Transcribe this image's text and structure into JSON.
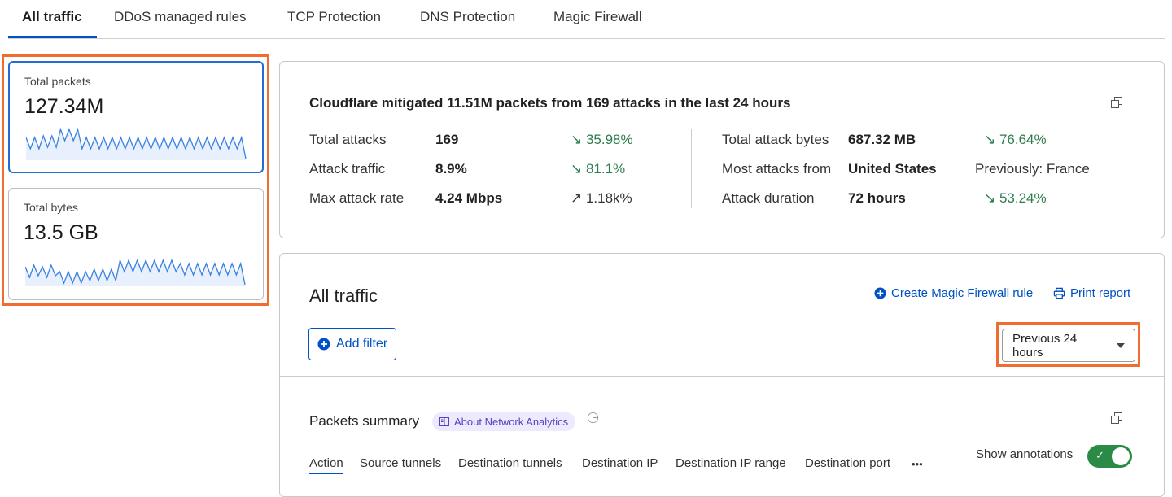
{
  "tabs": [
    {
      "label": "All traffic",
      "active": true
    },
    {
      "label": "DDoS managed rules"
    },
    {
      "label": "TCP Protection"
    },
    {
      "label": "DNS Protection"
    },
    {
      "label": "Magic Firewall"
    }
  ],
  "metrics": [
    {
      "label": "Total packets",
      "value": "127.34M",
      "selected": true
    },
    {
      "label": "Total bytes",
      "value": "13.5 GB",
      "selected": false
    }
  ],
  "summary": {
    "headline": "Cloudflare mitigated 11.51M packets from 169 attacks in the last 24 hours",
    "left": [
      {
        "label": "Total attacks",
        "value": "169",
        "change": "35.98%",
        "direction": "down"
      },
      {
        "label": "Attack traffic",
        "value": "8.9%",
        "change": "81.1%",
        "direction": "down"
      },
      {
        "label": "Max attack rate",
        "value": "4.24 Mbps",
        "change": "1.18k%",
        "direction": "up"
      }
    ],
    "right": [
      {
        "label": "Total attack bytes",
        "value": "687.32 MB",
        "change": "76.64%",
        "direction": "down"
      },
      {
        "label": "Most attacks from",
        "value": "United States",
        "change": "Previously: France",
        "direction": "none"
      },
      {
        "label": "Attack duration",
        "value": "72 hours",
        "change": "53.24%",
        "direction": "down"
      }
    ]
  },
  "traffic": {
    "title": "All traffic",
    "create_rule": "Create Magic Firewall rule",
    "print_report": "Print report",
    "add_filter": "Add filter",
    "time_range": "Previous 24 hours"
  },
  "packets": {
    "title": "Packets summary",
    "about": "About Network Analytics",
    "subtabs": [
      "Action",
      "Source tunnels",
      "Destination tunnels",
      "Destination IP",
      "Destination IP range",
      "Destination port"
    ],
    "more": "•••",
    "show_annotations": "Show annotations",
    "annotations_on": true
  },
  "colors": {
    "accent": "#0051c3",
    "highlight": "#f26b2f",
    "positive": "#2e7d4f",
    "toggle": "#2b8a45"
  }
}
